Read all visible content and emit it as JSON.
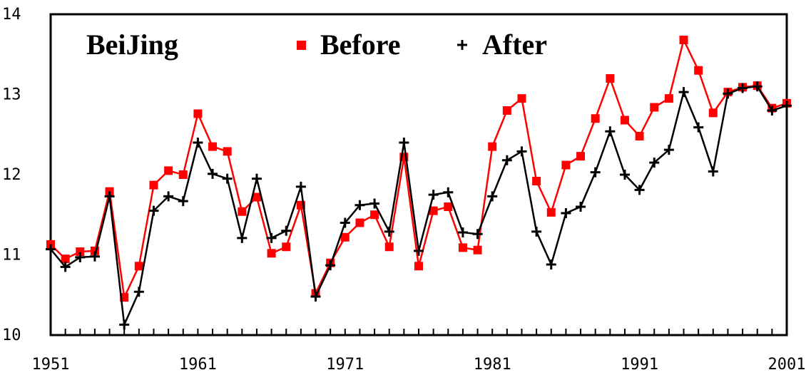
{
  "chart_data": {
    "type": "line",
    "title": "BeiJing",
    "xlabel": "",
    "ylabel": "",
    "xlim": [
      1951,
      2001
    ],
    "ylim": [
      10,
      14
    ],
    "x_ticks": [
      1951,
      1961,
      1971,
      1981,
      1991,
      2001
    ],
    "y_ticks": [
      10,
      11,
      12,
      13,
      14
    ],
    "x_tick_labels": [
      "1951",
      "1961",
      "1971",
      "1981",
      "1991",
      "2001"
    ],
    "y_tick_labels": [
      "10",
      "11",
      "12",
      "13",
      "14"
    ],
    "grid": false,
    "legend_position": "top",
    "x": [
      1951,
      1952,
      1953,
      1954,
      1955,
      1956,
      1957,
      1958,
      1959,
      1960,
      1961,
      1962,
      1963,
      1964,
      1965,
      1966,
      1967,
      1968,
      1969,
      1970,
      1971,
      1972,
      1973,
      1974,
      1975,
      1976,
      1977,
      1978,
      1979,
      1980,
      1981,
      1982,
      1983,
      1984,
      1985,
      1986,
      1987,
      1988,
      1989,
      1990,
      1991,
      1992,
      1993,
      1994,
      1995,
      1996,
      1997,
      1998,
      1999,
      2000,
      2001
    ],
    "series": [
      {
        "name": "Before",
        "color": "#ff0000",
        "marker": "square",
        "values": [
          11.13,
          10.95,
          11.04,
          11.05,
          11.79,
          10.47,
          10.86,
          11.87,
          12.05,
          12.0,
          12.76,
          12.35,
          12.29,
          11.54,
          11.72,
          11.02,
          11.1,
          11.62,
          10.52,
          10.9,
          11.22,
          11.4,
          11.5,
          11.1,
          12.22,
          10.86,
          11.55,
          11.6,
          11.09,
          11.06,
          12.35,
          12.8,
          12.95,
          11.92,
          11.53,
          12.12,
          12.23,
          12.7,
          13.2,
          12.68,
          12.48,
          12.84,
          12.95,
          13.68,
          13.3,
          12.77,
          13.03,
          13.09,
          13.11,
          12.83,
          12.89
        ]
      },
      {
        "name": "After",
        "color": "#000000",
        "marker": "plus",
        "values": [
          11.07,
          10.85,
          10.97,
          10.98,
          11.73,
          10.13,
          10.54,
          11.55,
          11.73,
          11.67,
          12.4,
          12.01,
          11.95,
          11.21,
          11.95,
          11.21,
          11.3,
          11.85,
          10.48,
          10.87,
          11.4,
          11.62,
          11.64,
          11.29,
          12.4,
          11.05,
          11.75,
          11.78,
          11.28,
          11.26,
          11.73,
          12.18,
          12.29,
          11.29,
          10.88,
          11.52,
          11.6,
          12.03,
          12.54,
          12.0,
          11.81,
          12.15,
          12.31,
          13.03,
          12.59,
          12.04,
          13.01,
          13.08,
          13.1,
          12.8,
          12.86
        ]
      }
    ]
  }
}
